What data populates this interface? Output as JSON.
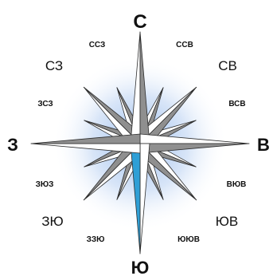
{
  "compass": {
    "cardinal": {
      "n": "С",
      "e": "В",
      "s": "Ю",
      "w": "З"
    },
    "intercardinal": {
      "ne": "СВ",
      "se": "ЮВ",
      "sw": "ЗЮ",
      "nw": "СЗ"
    },
    "secondary": {
      "nne": "ССВ",
      "ene": "ВСВ",
      "ese": "ВЮВ",
      "sse": "ЮЮВ",
      "ssw": "ЗЗЮ",
      "wsw": "ЗЮЗ",
      "wnw": "ЗСЗ",
      "nnw": "ССЗ"
    },
    "needle_color": "#2e9fd6",
    "glow_color": "#8fb6ec",
    "light_face": "#ffffff",
    "dark_face": "#8f8f8f",
    "outline": "#2d2d2d"
  }
}
